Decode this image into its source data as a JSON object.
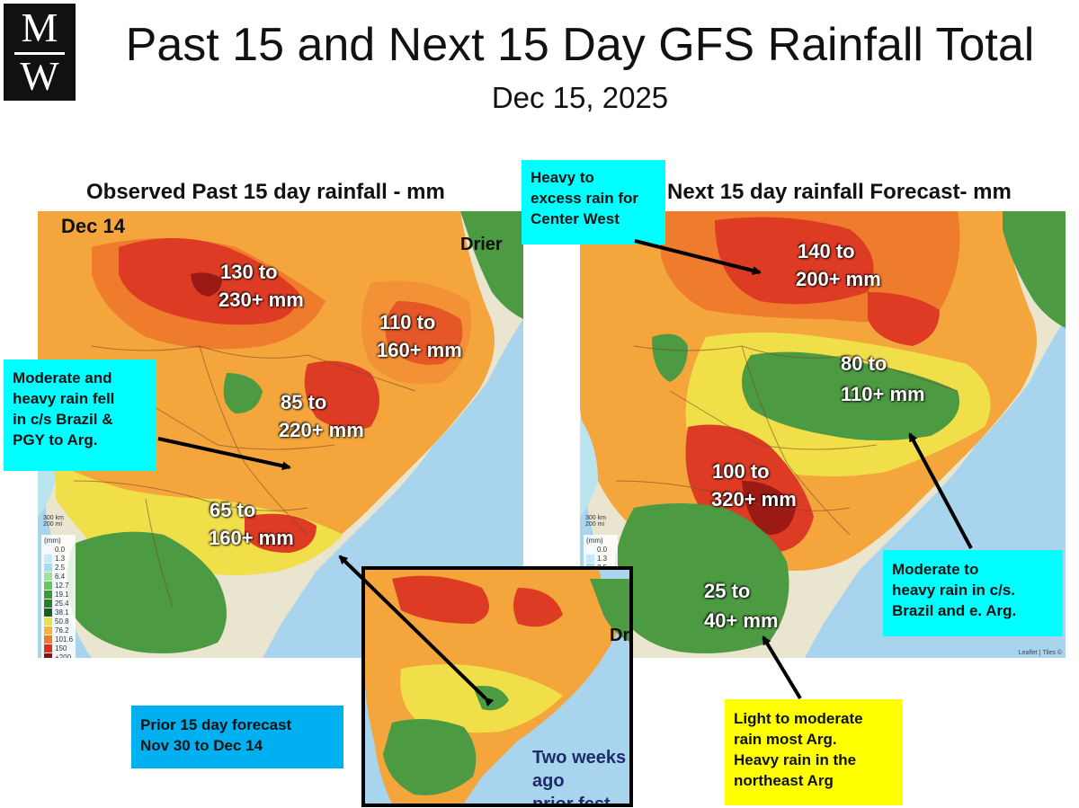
{
  "header": {
    "logo_top": "M",
    "logo_bottom": "W",
    "title": "Past 15 and Next 15 Day GFS Rainfall Total",
    "date": "Dec 15, 2025"
  },
  "left_panel": {
    "title": "Observed Past 15 day rainfall - mm",
    "date_label": "Dec 14",
    "drier_label": "Drier",
    "labels": [
      "130 to",
      "230+ mm",
      "110 to",
      "160+ mm",
      "85 to",
      "220+ mm",
      "65 to",
      "160+ mm"
    ]
  },
  "right_panel": {
    "title": "Next 15 day rainfall Forecast- mm",
    "labels": [
      "140 to",
      "200+ mm",
      "80 to",
      "110+ mm",
      "100 to",
      "320+ mm",
      "25 to",
      "40+ mm"
    ],
    "attribution": "Leaflet | Tiles ©"
  },
  "inset": {
    "drier_label": "Drier",
    "note_line1": "Two weeks ago",
    "note_line2": "prior fcst"
  },
  "callouts": {
    "center_west": [
      "Heavy to",
      "excess rain for",
      "Center West"
    ],
    "observed": [
      "Moderate and",
      "heavy rain fell",
      "in c/s Brazil &",
      "PGY to Arg."
    ],
    "prior": [
      "Prior 15 day  forecast",
      "Nov 30 to Dec 14"
    ],
    "forecast_cs": [
      "Moderate to",
      "heavy rain in c/s.",
      "Brazil and e. Arg."
    ],
    "argentina": [
      "Light to moderate",
      "rain most Arg.",
      "Heavy rain in the",
      "northeast Arg"
    ]
  },
  "legend": {
    "unit": "(mm)",
    "values": [
      "0.0",
      "1.3",
      "2.5",
      "6.4",
      "12.7",
      "19.1",
      "25.4",
      "38.1",
      "50.8",
      "76.2",
      "101.6",
      "150",
      "+200"
    ],
    "colors": [
      "#f7fbff",
      "#c6e8f7",
      "#a6dcef",
      "#9fe39a",
      "#63c75c",
      "#3c9a34",
      "#2f7b2a",
      "#1f5c20",
      "#e8e24a",
      "#f5b53a",
      "#f07a2a",
      "#d9301e",
      "#8b1010"
    ]
  },
  "scale_bar": [
    "300 km",
    "200 mi"
  ],
  "map_colors": {
    "ocean": "#a8d4ee",
    "land": "#eae5cf",
    "dry": "#b9e4f0",
    "green": "#4c9a42",
    "yellow": "#f1df4a",
    "orange": "#f4a53c",
    "deep_orange": "#ef7b2c",
    "red": "#dd3b24",
    "dark_red": "#9c1a16"
  }
}
